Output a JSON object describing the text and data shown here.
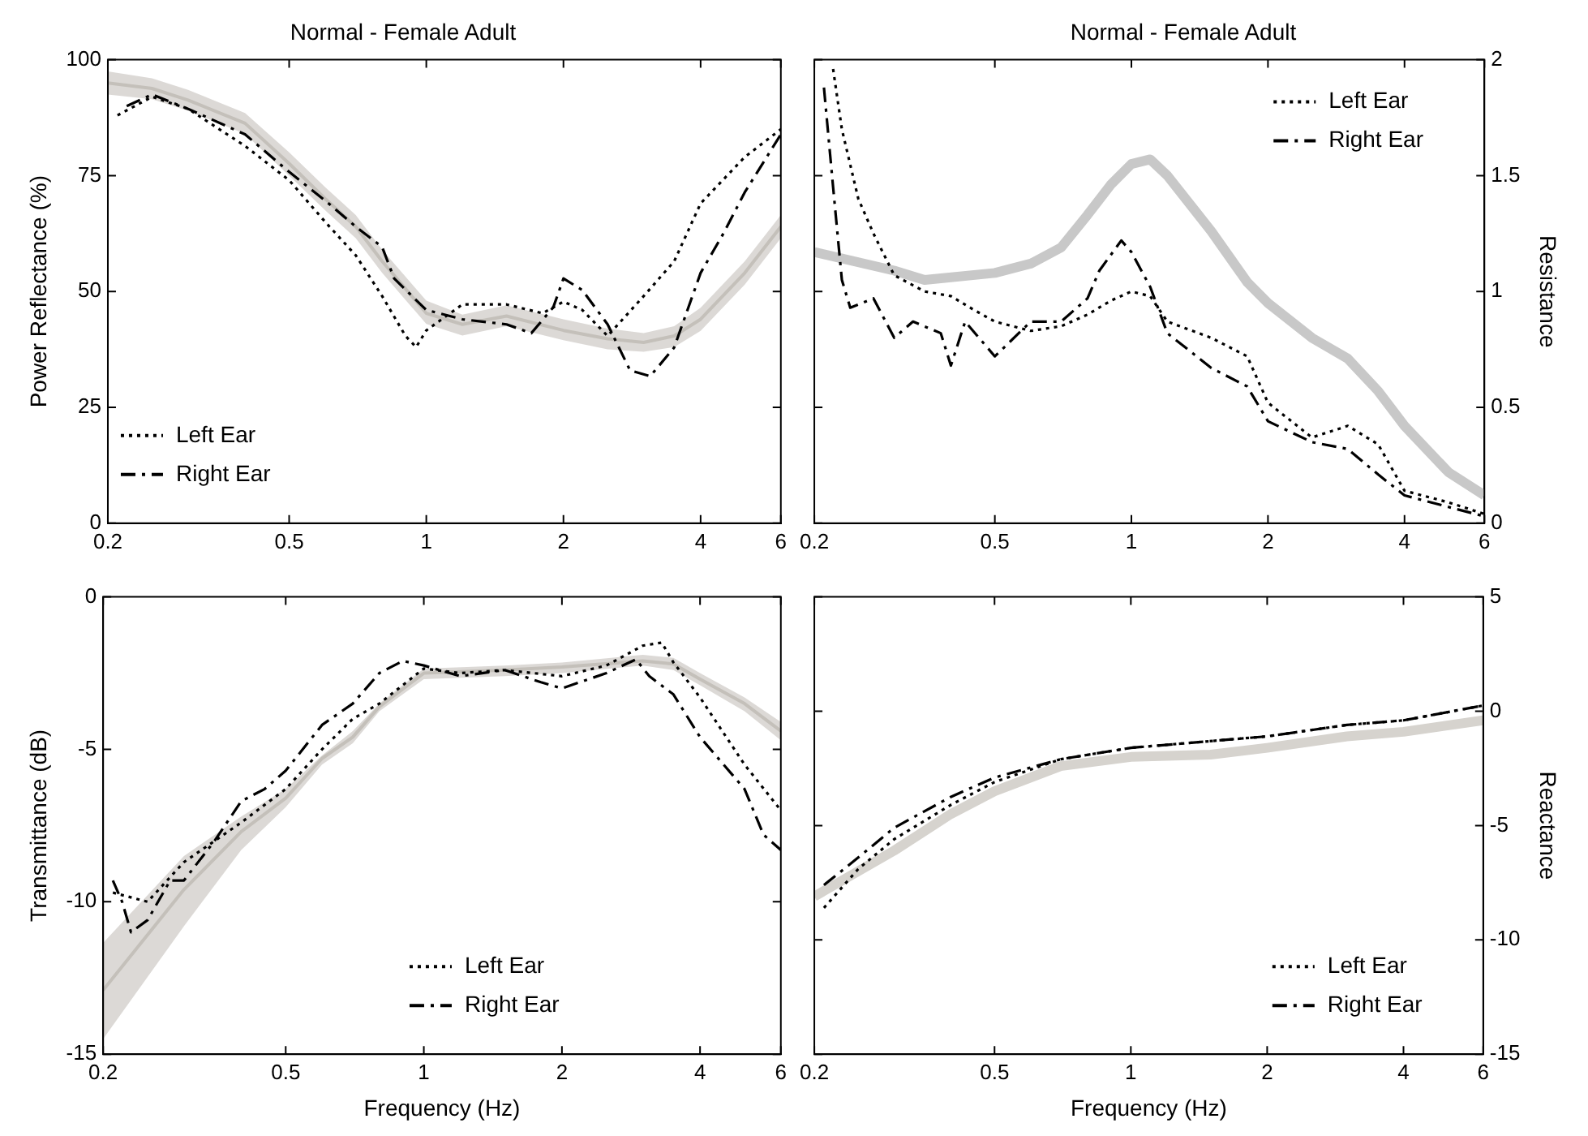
{
  "chart_data": [
    {
      "type": "line",
      "title": "Normal - Female Adult",
      "ylabel": "Power Reflectance (%)",
      "log": "x",
      "xlim": [
        0.2,
        6
      ],
      "xticks": [
        0.2,
        0.5,
        1,
        2,
        4,
        6
      ],
      "ylim": [
        0,
        100
      ],
      "yticks": [
        0,
        25,
        50,
        75,
        100
      ],
      "legend": "bottom left",
      "grid": false,
      "series": [
        {
          "color": "#c4c0ba",
          "line_style": "solid",
          "x": [
            0.2,
            0.25,
            0.3,
            0.4,
            0.5,
            0.6,
            0.7,
            0.8,
            1,
            1.2,
            1.5,
            2,
            2.5,
            3,
            3.5,
            4,
            5,
            6
          ],
          "values": [
            95,
            93.8,
            91.3,
            86.3,
            77.6,
            70,
            64,
            56.5,
            45.3,
            42.9,
            44.7,
            41.6,
            39.8,
            39,
            40.4,
            44,
            54,
            64
          ],
          "lower": [
            92.5,
            91.5,
            89,
            84,
            75,
            67.5,
            61.5,
            54,
            43,
            40.5,
            42.5,
            39.5,
            37.5,
            37,
            38,
            41.5,
            51.5,
            61.5
          ],
          "upper": [
            97.5,
            96,
            93.5,
            88.5,
            80,
            72.5,
            66.5,
            59,
            48,
            45,
            47,
            44,
            42,
            41,
            42.5,
            46.5,
            56.5,
            66.5
          ]
        },
        {
          "name": "Left Ear",
          "color": "#000000",
          "line_style": "dotted",
          "x": [
            0.21,
            0.25,
            0.3,
            0.4,
            0.5,
            0.6,
            0.7,
            0.8,
            0.9,
            0.95,
            1,
            1.2,
            1.5,
            1.8,
            2,
            2.2,
            2.5,
            3,
            3.5,
            4,
            5,
            6
          ],
          "values": [
            88,
            92,
            89.4,
            81.4,
            74,
            65,
            57.8,
            49,
            40.4,
            38,
            41.6,
            47.2,
            47.2,
            45.3,
            47.8,
            46,
            40.4,
            49,
            56.5,
            69,
            79,
            85
          ]
        },
        {
          "name": "Right Ear",
          "color": "#000000",
          "line_style": "dashed",
          "x": [
            0.22,
            0.25,
            0.3,
            0.4,
            0.5,
            0.6,
            0.7,
            0.8,
            0.85,
            1,
            1.2,
            1.5,
            1.7,
            1.9,
            2,
            2.2,
            2.5,
            2.8,
            3.1,
            3.5,
            4,
            4.5,
            5,
            6
          ],
          "values": [
            90,
            92.5,
            89.4,
            83.9,
            75.8,
            69.6,
            64,
            59.6,
            52.8,
            46,
            44,
            42.9,
            41,
            46.6,
            52.8,
            50.3,
            42.9,
            33,
            31.7,
            37.9,
            54,
            62.7,
            71.4,
            83.9
          ]
        }
      ]
    },
    {
      "type": "line",
      "title": "Normal - Female Adult",
      "y2label": "Resistance",
      "log": "x",
      "xlim": [
        0.2,
        6
      ],
      "xticks": [
        0.2,
        0.5,
        1,
        2,
        4,
        6
      ],
      "y2lim": [
        0,
        2
      ],
      "y2ticks": [
        0,
        0.5,
        1,
        1.5,
        2
      ],
      "legend": "top right",
      "grid": false,
      "series": [
        {
          "color": "#c8c8c8",
          "line_style": "solid",
          "axis": "y2",
          "x": [
            0.2,
            0.3,
            0.35,
            0.5,
            0.6,
            0.7,
            0.8,
            0.9,
            1,
            1.1,
            1.2,
            1.5,
            1.8,
            2,
            2.5,
            3,
            3.5,
            4,
            5,
            6
          ],
          "values": [
            1.17,
            1.09,
            1.05,
            1.08,
            1.12,
            1.19,
            1.33,
            1.46,
            1.55,
            1.57,
            1.5,
            1.26,
            1.04,
            0.95,
            0.8,
            0.71,
            0.57,
            0.42,
            0.22,
            0.12
          ]
        },
        {
          "name": "Left Ear",
          "color": "#000000",
          "line_style": "dotted",
          "axis": "y2",
          "x": [
            0.22,
            0.23,
            0.25,
            0.27,
            0.3,
            0.35,
            0.4,
            0.45,
            0.5,
            0.6,
            0.7,
            0.8,
            0.9,
            1,
            1.1,
            1.2,
            1.5,
            1.8,
            2,
            2.5,
            3,
            3.5,
            4,
            5,
            6
          ],
          "values": [
            1.96,
            1.7,
            1.4,
            1.25,
            1.07,
            1,
            0.98,
            0.92,
            0.87,
            0.83,
            0.85,
            0.9,
            0.96,
            1,
            0.98,
            0.87,
            0.8,
            0.72,
            0.52,
            0.37,
            0.42,
            0.34,
            0.14,
            0.09,
            0.04
          ]
        },
        {
          "name": "Right Ear",
          "color": "#000000",
          "line_style": "dashed",
          "axis": "y2",
          "x": [
            0.21,
            0.22,
            0.23,
            0.24,
            0.27,
            0.3,
            0.33,
            0.38,
            0.4,
            0.43,
            0.5,
            0.6,
            0.7,
            0.8,
            0.85,
            0.95,
            1,
            1.1,
            1.2,
            1.5,
            1.8,
            2,
            2.5,
            3,
            3.5,
            4,
            5,
            6
          ],
          "values": [
            1.88,
            1.45,
            1.05,
            0.93,
            0.97,
            0.8,
            0.87,
            0.82,
            0.68,
            0.87,
            0.72,
            0.87,
            0.87,
            0.97,
            1.09,
            1.22,
            1.17,
            1.02,
            0.82,
            0.67,
            0.59,
            0.44,
            0.35,
            0.32,
            0.21,
            0.12,
            0.07,
            0.03
          ]
        }
      ]
    },
    {
      "type": "line",
      "xlabel": "Frequency (Hz)",
      "ylabel": "Transmittance (dB)",
      "log": "x",
      "xlim": [
        0.2,
        6
      ],
      "xticks": [
        0.2,
        0.5,
        1,
        2,
        4,
        6
      ],
      "ylim": [
        -15,
        0
      ],
      "yticks": [
        -15,
        -10,
        -5,
        0
      ],
      "legend": "bottom",
      "grid": false,
      "series": [
        {
          "color": "#c4c0ba",
          "line_style": "solid",
          "x": [
            0.2,
            0.3,
            0.4,
            0.5,
            0.6,
            0.7,
            0.8,
            1,
            1.5,
            2,
            3,
            3.5,
            4,
            5,
            6
          ],
          "values": [
            -12.9,
            -9.6,
            -7.7,
            -6.6,
            -5.3,
            -4.6,
            -3.6,
            -2.5,
            -2.4,
            -2.3,
            -2.1,
            -2.2,
            -2.7,
            -3.5,
            -4.4
          ],
          "lower": [
            -14.5,
            -10.8,
            -8.3,
            -6.9,
            -5.5,
            -4.8,
            -3.75,
            -2.7,
            -2.6,
            -2.5,
            -2.25,
            -2.4,
            -2.9,
            -3.75,
            -4.7
          ],
          "upper": [
            -11.35,
            -8.5,
            -7.2,
            -6.3,
            -5.2,
            -4.4,
            -3.5,
            -2.35,
            -2.25,
            -2.15,
            -1.9,
            -2,
            -2.5,
            -3.3,
            -4.1
          ]
        },
        {
          "name": "Left Ear",
          "color": "#000000",
          "line_style": "dotted",
          "x": [
            0.21,
            0.25,
            0.3,
            0.4,
            0.5,
            0.6,
            0.7,
            0.8,
            1,
            1.2,
            1.5,
            2,
            2.5,
            3,
            3.3,
            3.5,
            4,
            5,
            6
          ],
          "values": [
            -9.7,
            -10,
            -8.7,
            -7.4,
            -6.3,
            -5,
            -4,
            -3.5,
            -2.35,
            -2.5,
            -2.4,
            -2.6,
            -2.25,
            -1.6,
            -1.5,
            -2.15,
            -3.3,
            -5.5,
            -7
          ]
        },
        {
          "name": "Right Ear",
          "color": "#000000",
          "line_style": "dashed",
          "x": [
            0.21,
            0.22,
            0.23,
            0.25,
            0.28,
            0.3,
            0.35,
            0.4,
            0.45,
            0.5,
            0.6,
            0.7,
            0.8,
            0.9,
            1,
            1.2,
            1.5,
            1.8,
            2,
            2.5,
            2.9,
            3.1,
            3.5,
            4,
            5,
            5.5,
            6
          ],
          "values": [
            -9.3,
            -10,
            -11,
            -10.6,
            -9.3,
            -9.3,
            -8,
            -6.7,
            -6.3,
            -5.7,
            -4.2,
            -3.5,
            -2.5,
            -2.1,
            -2.25,
            -2.6,
            -2.4,
            -2.8,
            -3,
            -2.5,
            -2.05,
            -2.6,
            -3.2,
            -4.6,
            -6.3,
            -7.8,
            -8.3
          ]
        }
      ]
    },
    {
      "type": "line",
      "xlabel": "Frequency (Hz)",
      "y2label": "Reactance",
      "log": "x",
      "xlim": [
        0.2,
        6
      ],
      "xticks": [
        0.2,
        0.5,
        1,
        2,
        4,
        6
      ],
      "y2lim": [
        -15,
        5
      ],
      "y2ticks": [
        -15,
        -10,
        -5,
        0,
        5
      ],
      "legend": "bottom right",
      "grid": false,
      "series": [
        {
          "color": "#d6d3ce",
          "line_style": "solid",
          "axis": "y2",
          "x": [
            0.2,
            0.3,
            0.4,
            0.5,
            0.7,
            1,
            1.5,
            2,
            3,
            4,
            6
          ],
          "values": [
            -8.1,
            -6.1,
            -4.5,
            -3.5,
            -2.4,
            -2,
            -1.9,
            -1.6,
            -1.1,
            -0.9,
            -0.4
          ]
        },
        {
          "name": "Left Ear",
          "color": "#000000",
          "line_style": "dotted",
          "axis": "y2",
          "x": [
            0.21,
            0.25,
            0.3,
            0.4,
            0.5,
            0.7,
            1,
            2,
            3,
            4,
            6
          ],
          "values": [
            -8.6,
            -6.9,
            -5.6,
            -4.1,
            -3.1,
            -2.1,
            -1.6,
            -1.1,
            -0.6,
            -0.4,
            0.25
          ]
        },
        {
          "name": "Right Ear",
          "color": "#000000",
          "line_style": "dashed",
          "axis": "y2",
          "x": [
            0.21,
            0.25,
            0.3,
            0.4,
            0.5,
            0.7,
            1,
            2,
            3,
            4,
            6
          ],
          "values": [
            -7.6,
            -6.4,
            -5.1,
            -3.75,
            -2.9,
            -2.1,
            -1.6,
            -1.1,
            -0.6,
            -0.4,
            0.25
          ]
        }
      ]
    }
  ]
}
